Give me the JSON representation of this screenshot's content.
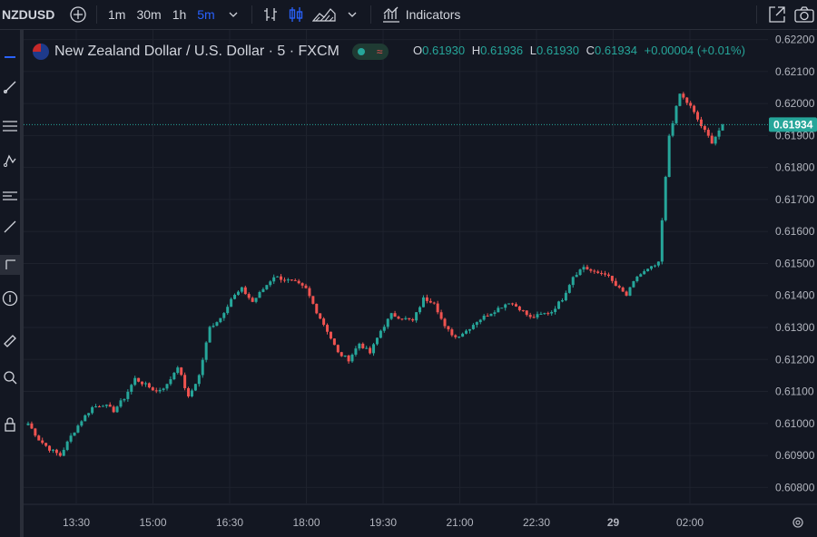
{
  "toolbar": {
    "symbol": "NZDUSD",
    "timeframes": [
      {
        "label": "1m",
        "active": false
      },
      {
        "label": "30m",
        "active": false
      },
      {
        "label": "1h",
        "active": false
      },
      {
        "label": "5m",
        "active": true
      }
    ],
    "indicators_label": "Indicators"
  },
  "legend": {
    "title": "New Zealand Dollar / U.S. Dollar · 5 · FXCM",
    "o_label": "O",
    "o_value": "0.61930",
    "h_label": "H",
    "h_value": "0.61936",
    "l_label": "L",
    "l_value": "0.61930",
    "c_label": "C",
    "c_value": "0.61934",
    "change": "+0.00004 (+0.01%)"
  },
  "last_price": "0.61934",
  "colors": {
    "up": "#26a69a",
    "down": "#ef5350",
    "background": "#131722",
    "grid": "#1e222d",
    "text": "#b2b5be"
  },
  "chart_data": {
    "type": "candlestick",
    "ylim": [
      0.6075,
      0.6223
    ],
    "y_ticks": [
      "0.62200",
      "0.62100",
      "0.62000",
      "0.61900",
      "0.61800",
      "0.61700",
      "0.61600",
      "0.61500",
      "0.61400",
      "0.61300",
      "0.61200",
      "0.61100",
      "0.61000",
      "0.60900",
      "0.60800"
    ],
    "x_ticks": [
      "13:30",
      "15:00",
      "16:30",
      "18:00",
      "19:30",
      "21:00",
      "22:30",
      "29",
      "02:00"
    ],
    "close_path": [
      0.61,
      0.6095,
      0.6092,
      0.609,
      0.6096,
      0.6101,
      0.6105,
      0.6106,
      0.6104,
      0.6108,
      0.6114,
      0.6112,
      0.611,
      0.6112,
      0.6118,
      0.6108,
      0.6115,
      0.613,
      0.6133,
      0.6139,
      0.6142,
      0.6138,
      0.6142,
      0.6146,
      0.6145,
      0.6144,
      0.6142,
      0.6135,
      0.6129,
      0.6122,
      0.612,
      0.6125,
      0.6122,
      0.6129,
      0.6134,
      0.6133,
      0.6132,
      0.6139,
      0.6138,
      0.613,
      0.6127,
      0.6129,
      0.6132,
      0.6134,
      0.6136,
      0.6138,
      0.6136,
      0.6133,
      0.6134,
      0.6135,
      0.6139,
      0.6146,
      0.6149,
      0.6147,
      0.6147,
      0.6143,
      0.614,
      0.6146,
      0.6148,
      0.615,
      0.619,
      0.6203,
      0.6199,
      0.6193,
      0.6188,
      0.61934
    ]
  }
}
